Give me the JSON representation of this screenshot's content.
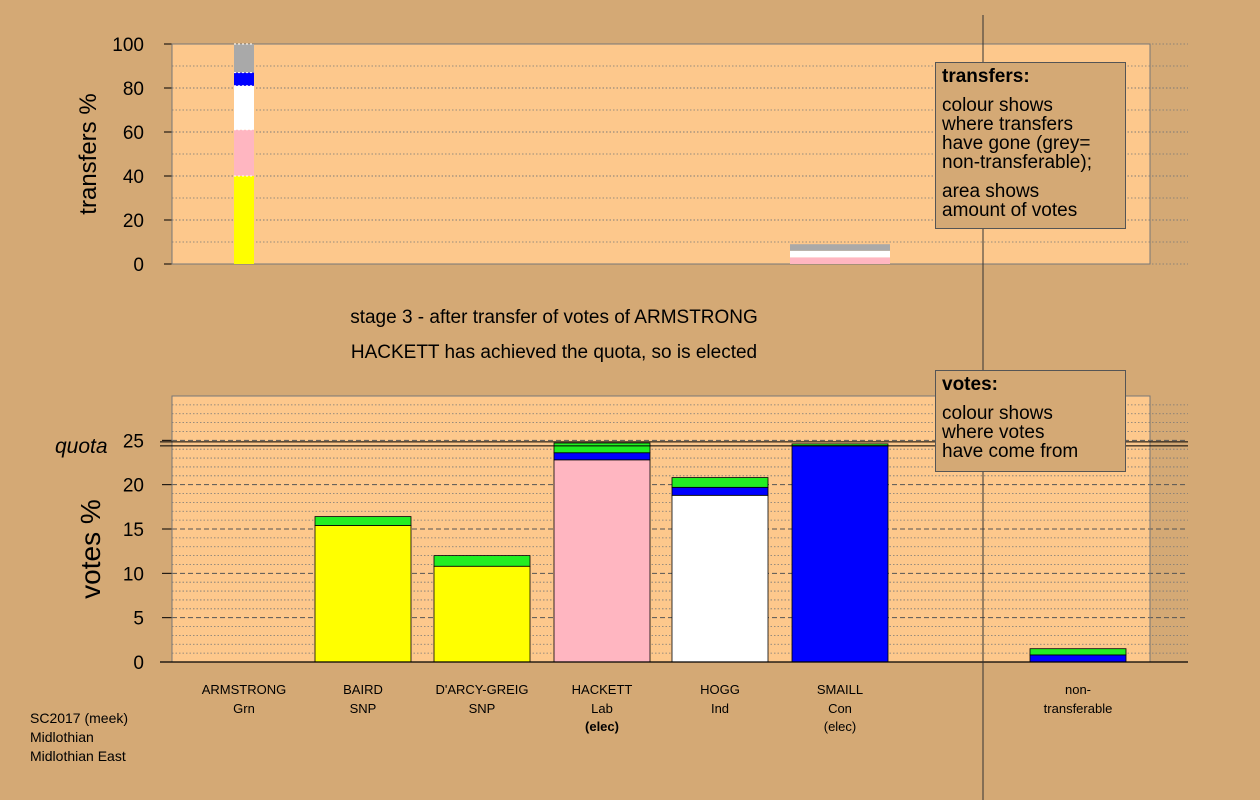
{
  "chart_data": [
    {
      "type": "bar",
      "title": "",
      "ylabel": "transfers %",
      "ylim": [
        0,
        100
      ],
      "yticks": [
        0,
        20,
        40,
        60,
        80,
        100
      ],
      "categories": [
        "ARMSTRONG",
        "BAIRD",
        "D'ARCY-GREIG",
        "HACKETT",
        "HOGG",
        "SMAILL",
        "non-transferable"
      ],
      "stacked": true,
      "bars": [
        {
          "category": "ARMSTRONG",
          "segments": [
            {
              "from": "BAIRD/D'ARCY-GREIG",
              "color": "#ffff00",
              "value": 40
            },
            {
              "from": "HACKETT",
              "color": "#ffb6c1",
              "value": 21
            },
            {
              "from": "HOGG",
              "color": "#ffffff",
              "value": 20
            },
            {
              "from": "SMAILL",
              "color": "#0000ff",
              "value": 6
            },
            {
              "from": "non-transferable",
              "color": "#a9a9a9",
              "value": 13
            }
          ]
        },
        {
          "category": "SMAILL",
          "note": "surplus transfer (thin bar)",
          "segments": [
            {
              "from": "HACKETT",
              "color": "#ffb6c1",
              "value": 3
            },
            {
              "from": "HOGG",
              "color": "#ffffff",
              "value": 3
            },
            {
              "from": "non-transferable",
              "color": "#a9a9a9",
              "value": 3
            }
          ]
        }
      ]
    },
    {
      "type": "bar",
      "title": "",
      "ylabel": "votes %",
      "ylim": [
        0,
        30
      ],
      "yticks": [
        0,
        5,
        10,
        15,
        20,
        25
      ],
      "quota": 24.6,
      "quota_label": "quota",
      "categories": [
        "ARMSTRONG",
        "BAIRD",
        "D'ARCY-GREIG",
        "HACKETT",
        "HOGG",
        "SMAILL",
        "non-transferable"
      ],
      "stacked": true,
      "bars": [
        {
          "category": "ARMSTRONG",
          "segments": []
        },
        {
          "category": "BAIRD",
          "segments": [
            {
              "from": "first preferences",
              "color": "#ffff00",
              "value": 15.4
            },
            {
              "from": "ARMSTRONG",
              "color": "#22ee22",
              "value": 1.0
            }
          ]
        },
        {
          "category": "D'ARCY-GREIG",
          "segments": [
            {
              "from": "first preferences",
              "color": "#ffff00",
              "value": 10.8
            },
            {
              "from": "ARMSTRONG",
              "color": "#22ee22",
              "value": 1.2
            }
          ]
        },
        {
          "category": "HACKETT",
          "segments": [
            {
              "from": "first preferences",
              "color": "#ffb6c1",
              "value": 22.8
            },
            {
              "from": "SMAILL",
              "color": "#0000ff",
              "value": 0.8
            },
            {
              "from": "ARMSTRONG",
              "color": "#22ee22",
              "value": 1.1
            }
          ]
        },
        {
          "category": "HOGG",
          "segments": [
            {
              "from": "first preferences",
              "color": "#ffffff",
              "value": 18.8
            },
            {
              "from": "SMAILL",
              "color": "#0000ff",
              "value": 0.9
            },
            {
              "from": "ARMSTRONG",
              "color": "#22ee22",
              "value": 1.1
            }
          ]
        },
        {
          "category": "SMAILL",
          "segments": [
            {
              "from": "first preferences",
              "color": "#0000ff",
              "value": 24.4
            },
            {
              "from": "ARMSTRONG",
              "color": "#22ee22",
              "value": 0.2
            }
          ]
        },
        {
          "category": "non-transferable",
          "segments": [
            {
              "from": "SMAILL",
              "color": "#0000ff",
              "value": 0.8
            },
            {
              "from": "ARMSTRONG",
              "color": "#22ee22",
              "value": 0.7
            }
          ]
        }
      ]
    }
  ],
  "candidates": [
    {
      "name": "ARMSTRONG",
      "party": "Grn",
      "status": ""
    },
    {
      "name": "BAIRD",
      "party": "SNP",
      "status": ""
    },
    {
      "name": "D'ARCY-GREIG",
      "party": "SNP",
      "status": ""
    },
    {
      "name": "HACKETT",
      "party": "Lab",
      "status": "(elec)",
      "status_bold": true
    },
    {
      "name": "HOGG",
      "party": "Ind",
      "status": ""
    },
    {
      "name": "SMAILL",
      "party": "Con",
      "status": "(elec)",
      "status_bold": false
    },
    {
      "name": "non-",
      "party": "transferable",
      "status": ""
    }
  ],
  "stage_text": {
    "line1": "stage 3 - after transfer of votes of ARMSTRONG",
    "line2": "HACKETT has achieved the quota, so is elected"
  },
  "legend_transfers": {
    "title": "transfers:",
    "line1": "colour shows",
    "line2": "where transfers",
    "line3": "have gone (grey=",
    "line4": "non-transferable);",
    "line5": "area shows",
    "line6": "amount of votes"
  },
  "legend_votes": {
    "title": "votes:",
    "line1": "colour shows",
    "line2": "where votes",
    "line3": "have come from"
  },
  "footer": {
    "line1": "SC2017 (meek)",
    "line2": "Midlothian",
    "line3": "Midlothian East"
  },
  "colors": {
    "background": "#d4a975",
    "plot_background": "#fdc88c",
    "grey": "#a9a9a9"
  }
}
